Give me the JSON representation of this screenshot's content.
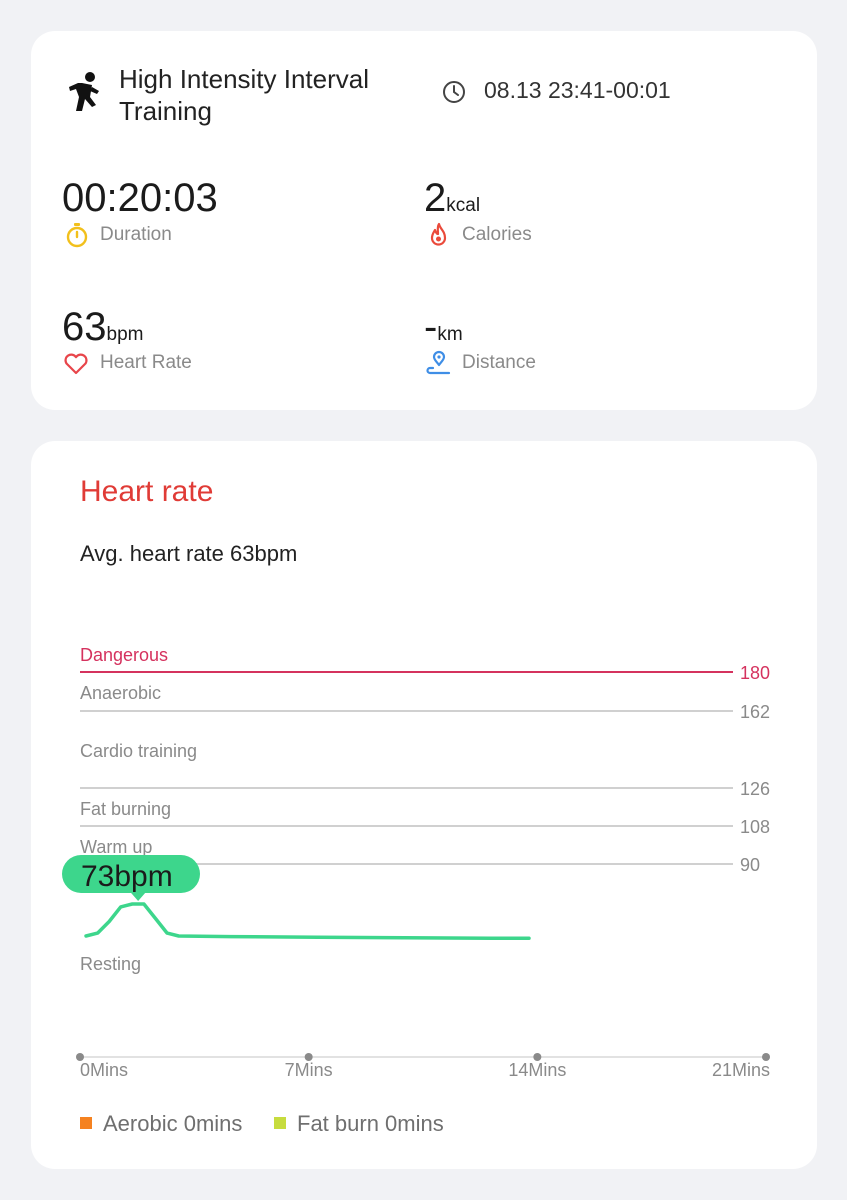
{
  "workout": {
    "title": "High Intensity Interval Training",
    "time_range": "08.13 23:41-00:01"
  },
  "stats": {
    "duration": {
      "value": "00:20:03",
      "label": "Duration",
      "icon": "stopwatch-icon"
    },
    "calories": {
      "value": "2",
      "unit": "kcal",
      "label": "Calories",
      "icon": "flame-icon"
    },
    "heart_rate": {
      "value": "63",
      "unit": "bpm",
      "label": "Heart Rate",
      "icon": "heart-icon"
    },
    "distance": {
      "value": "-",
      "unit": "km",
      "label": "Distance",
      "icon": "location-pin-icon"
    }
  },
  "heart_rate_card": {
    "title": "Heart rate",
    "avg_text": "Avg. heart rate 63bpm",
    "bubble": "73bpm",
    "legend": [
      {
        "label": "Aerobic 0mins",
        "color": "#f58220"
      },
      {
        "label": "Fat burn 0mins",
        "color": "#c7dc3e"
      }
    ]
  },
  "colors": {
    "accent_red": "#e03b36",
    "danger_line": "#d5325e",
    "curve_green": "#3dd68c",
    "zone_line": "#d0d0d0"
  },
  "chart_data": {
    "type": "line",
    "title": "Heart rate",
    "xlabel": "",
    "ylabel": "",
    "x_ticks": [
      "0Mins",
      "7Mins",
      "14Mins",
      "21Mins"
    ],
    "xlim": [
      0,
      21
    ],
    "zones": [
      {
        "name": "Dangerous",
        "threshold": 180
      },
      {
        "name": "Anaerobic",
        "threshold": 162
      },
      {
        "name": "Cardio training",
        "threshold": 126
      },
      {
        "name": "Fat burning",
        "threshold": 108
      },
      {
        "name": "Warm up",
        "threshold": 90
      },
      {
        "name": "Resting",
        "threshold": null
      }
    ],
    "series": [
      {
        "values": [
          {
            "x": 0,
            "y": 62
          },
          {
            "x": 0.4,
            "y": 63
          },
          {
            "x": 0.8,
            "y": 67
          },
          {
            "x": 1.2,
            "y": 72
          },
          {
            "x": 1.6,
            "y": 73
          },
          {
            "x": 2.0,
            "y": 73
          },
          {
            "x": 2.4,
            "y": 68
          },
          {
            "x": 2.8,
            "y": 63
          },
          {
            "x": 3.2,
            "y": 62
          },
          {
            "x": 5,
            "y": 61.8
          },
          {
            "x": 8,
            "y": 61.6
          },
          {
            "x": 11,
            "y": 61.4
          },
          {
            "x": 14,
            "y": 61.2
          },
          {
            "x": 15.3,
            "y": 61.2
          }
        ]
      }
    ],
    "peak": {
      "x": 1.8,
      "y": 73
    }
  }
}
